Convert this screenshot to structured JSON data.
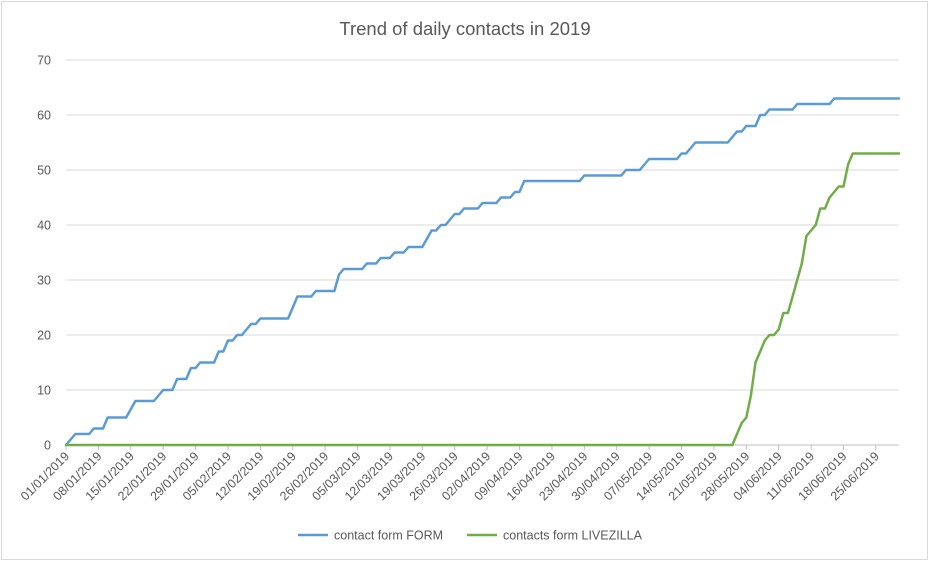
{
  "chart_data": {
    "type": "line",
    "title": "Trend of daily contacts in 2019",
    "xlabel": "",
    "ylabel": "",
    "ylim": [
      0,
      70
    ],
    "y_ticks": [
      "0",
      "10",
      "20",
      "30",
      "40",
      "50",
      "60",
      "70"
    ],
    "x_tick_labels": [
      "01/01/2019",
      "08/01/2019",
      "15/01/2019",
      "22/01/2019",
      "29/01/2019",
      "05/02/2019",
      "12/02/2019",
      "19/02/2019",
      "26/02/2019",
      "05/03/2019",
      "12/03/2019",
      "19/03/2019",
      "26/03/2019",
      "02/04/2019",
      "09/04/2019",
      "16/04/2019",
      "23/04/2019",
      "30/04/2019",
      "07/05/2019",
      "14/05/2019",
      "21/05/2019",
      "28/05/2019",
      "04/06/2019",
      "11/06/2019",
      "18/06/2019",
      "25/06/2019"
    ],
    "x_range": [
      "01/01/2019",
      "30/06/2019"
    ],
    "grid": "horizontal",
    "legend_position": "bottom",
    "series": [
      {
        "name": "contact form FORM",
        "color": "#5b9bd5",
        "points": [
          [
            "01/01/2019",
            0
          ],
          [
            "03/01/2019",
            2
          ],
          [
            "06/01/2019",
            2
          ],
          [
            "07/01/2019",
            3
          ],
          [
            "09/01/2019",
            3
          ],
          [
            "10/01/2019",
            5
          ],
          [
            "14/01/2019",
            5
          ],
          [
            "16/01/2019",
            8
          ],
          [
            "20/01/2019",
            8
          ],
          [
            "22/01/2019",
            10
          ],
          [
            "24/01/2019",
            10
          ],
          [
            "25/01/2019",
            12
          ],
          [
            "27/01/2019",
            12
          ],
          [
            "28/01/2019",
            14
          ],
          [
            "29/01/2019",
            14
          ],
          [
            "30/01/2019",
            15
          ],
          [
            "02/02/2019",
            15
          ],
          [
            "03/02/2019",
            17
          ],
          [
            "04/02/2019",
            17
          ],
          [
            "05/02/2019",
            19
          ],
          [
            "06/02/2019",
            19
          ],
          [
            "07/02/2019",
            20
          ],
          [
            "08/02/2019",
            20
          ],
          [
            "10/02/2019",
            22
          ],
          [
            "11/02/2019",
            22
          ],
          [
            "12/02/2019",
            23
          ],
          [
            "18/02/2019",
            23
          ],
          [
            "20/02/2019",
            27
          ],
          [
            "23/02/2019",
            27
          ],
          [
            "24/02/2019",
            28
          ],
          [
            "28/02/2019",
            28
          ],
          [
            "01/03/2019",
            31
          ],
          [
            "02/03/2019",
            32
          ],
          [
            "06/03/2019",
            32
          ],
          [
            "07/03/2019",
            33
          ],
          [
            "09/03/2019",
            33
          ],
          [
            "10/03/2019",
            34
          ],
          [
            "12/03/2019",
            34
          ],
          [
            "13/03/2019",
            35
          ],
          [
            "15/03/2019",
            35
          ],
          [
            "16/03/2019",
            36
          ],
          [
            "19/03/2019",
            36
          ],
          [
            "21/03/2019",
            39
          ],
          [
            "22/03/2019",
            39
          ],
          [
            "23/03/2019",
            40
          ],
          [
            "24/03/2019",
            40
          ],
          [
            "26/03/2019",
            42
          ],
          [
            "27/03/2019",
            42
          ],
          [
            "28/03/2019",
            43
          ],
          [
            "31/03/2019",
            43
          ],
          [
            "01/04/2019",
            44
          ],
          [
            "04/04/2019",
            44
          ],
          [
            "05/04/2019",
            45
          ],
          [
            "07/04/2019",
            45
          ],
          [
            "08/04/2019",
            46
          ],
          [
            "09/04/2019",
            46
          ],
          [
            "10/04/2019",
            48
          ],
          [
            "22/04/2019",
            48
          ],
          [
            "23/04/2019",
            49
          ],
          [
            "01/05/2019",
            49
          ],
          [
            "02/05/2019",
            50
          ],
          [
            "05/05/2019",
            50
          ],
          [
            "07/05/2019",
            52
          ],
          [
            "13/05/2019",
            52
          ],
          [
            "14/05/2019",
            53
          ],
          [
            "15/05/2019",
            53
          ],
          [
            "17/05/2019",
            55
          ],
          [
            "24/05/2019",
            55
          ],
          [
            "26/05/2019",
            57
          ],
          [
            "27/05/2019",
            57
          ],
          [
            "28/05/2019",
            58
          ],
          [
            "30/05/2019",
            58
          ],
          [
            "31/05/2019",
            60
          ],
          [
            "01/06/2019",
            60
          ],
          [
            "02/06/2019",
            61
          ],
          [
            "07/06/2019",
            61
          ],
          [
            "08/06/2019",
            62
          ],
          [
            "15/06/2019",
            62
          ],
          [
            "16/06/2019",
            63
          ],
          [
            "30/06/2019",
            63
          ]
        ]
      },
      {
        "name": "contacts form LIVEZILLA",
        "color": "#70ad47",
        "points": [
          [
            "01/01/2019",
            0
          ],
          [
            "25/05/2019",
            0
          ],
          [
            "26/05/2019",
            2
          ],
          [
            "27/05/2019",
            4
          ],
          [
            "28/05/2019",
            5
          ],
          [
            "29/05/2019",
            9
          ],
          [
            "30/05/2019",
            15
          ],
          [
            "31/05/2019",
            17
          ],
          [
            "01/06/2019",
            19
          ],
          [
            "02/06/2019",
            20
          ],
          [
            "03/06/2019",
            20
          ],
          [
            "04/06/2019",
            21
          ],
          [
            "05/06/2019",
            24
          ],
          [
            "06/06/2019",
            24
          ],
          [
            "07/06/2019",
            27
          ],
          [
            "08/06/2019",
            30
          ],
          [
            "09/06/2019",
            33
          ],
          [
            "10/06/2019",
            38
          ],
          [
            "11/06/2019",
            39
          ],
          [
            "12/06/2019",
            40
          ],
          [
            "13/06/2019",
            43
          ],
          [
            "14/06/2019",
            43
          ],
          [
            "15/06/2019",
            45
          ],
          [
            "16/06/2019",
            46
          ],
          [
            "17/06/2019",
            47
          ],
          [
            "18/06/2019",
            47
          ],
          [
            "19/06/2019",
            51
          ],
          [
            "20/06/2019",
            53
          ],
          [
            "30/06/2019",
            53
          ]
        ]
      }
    ]
  }
}
